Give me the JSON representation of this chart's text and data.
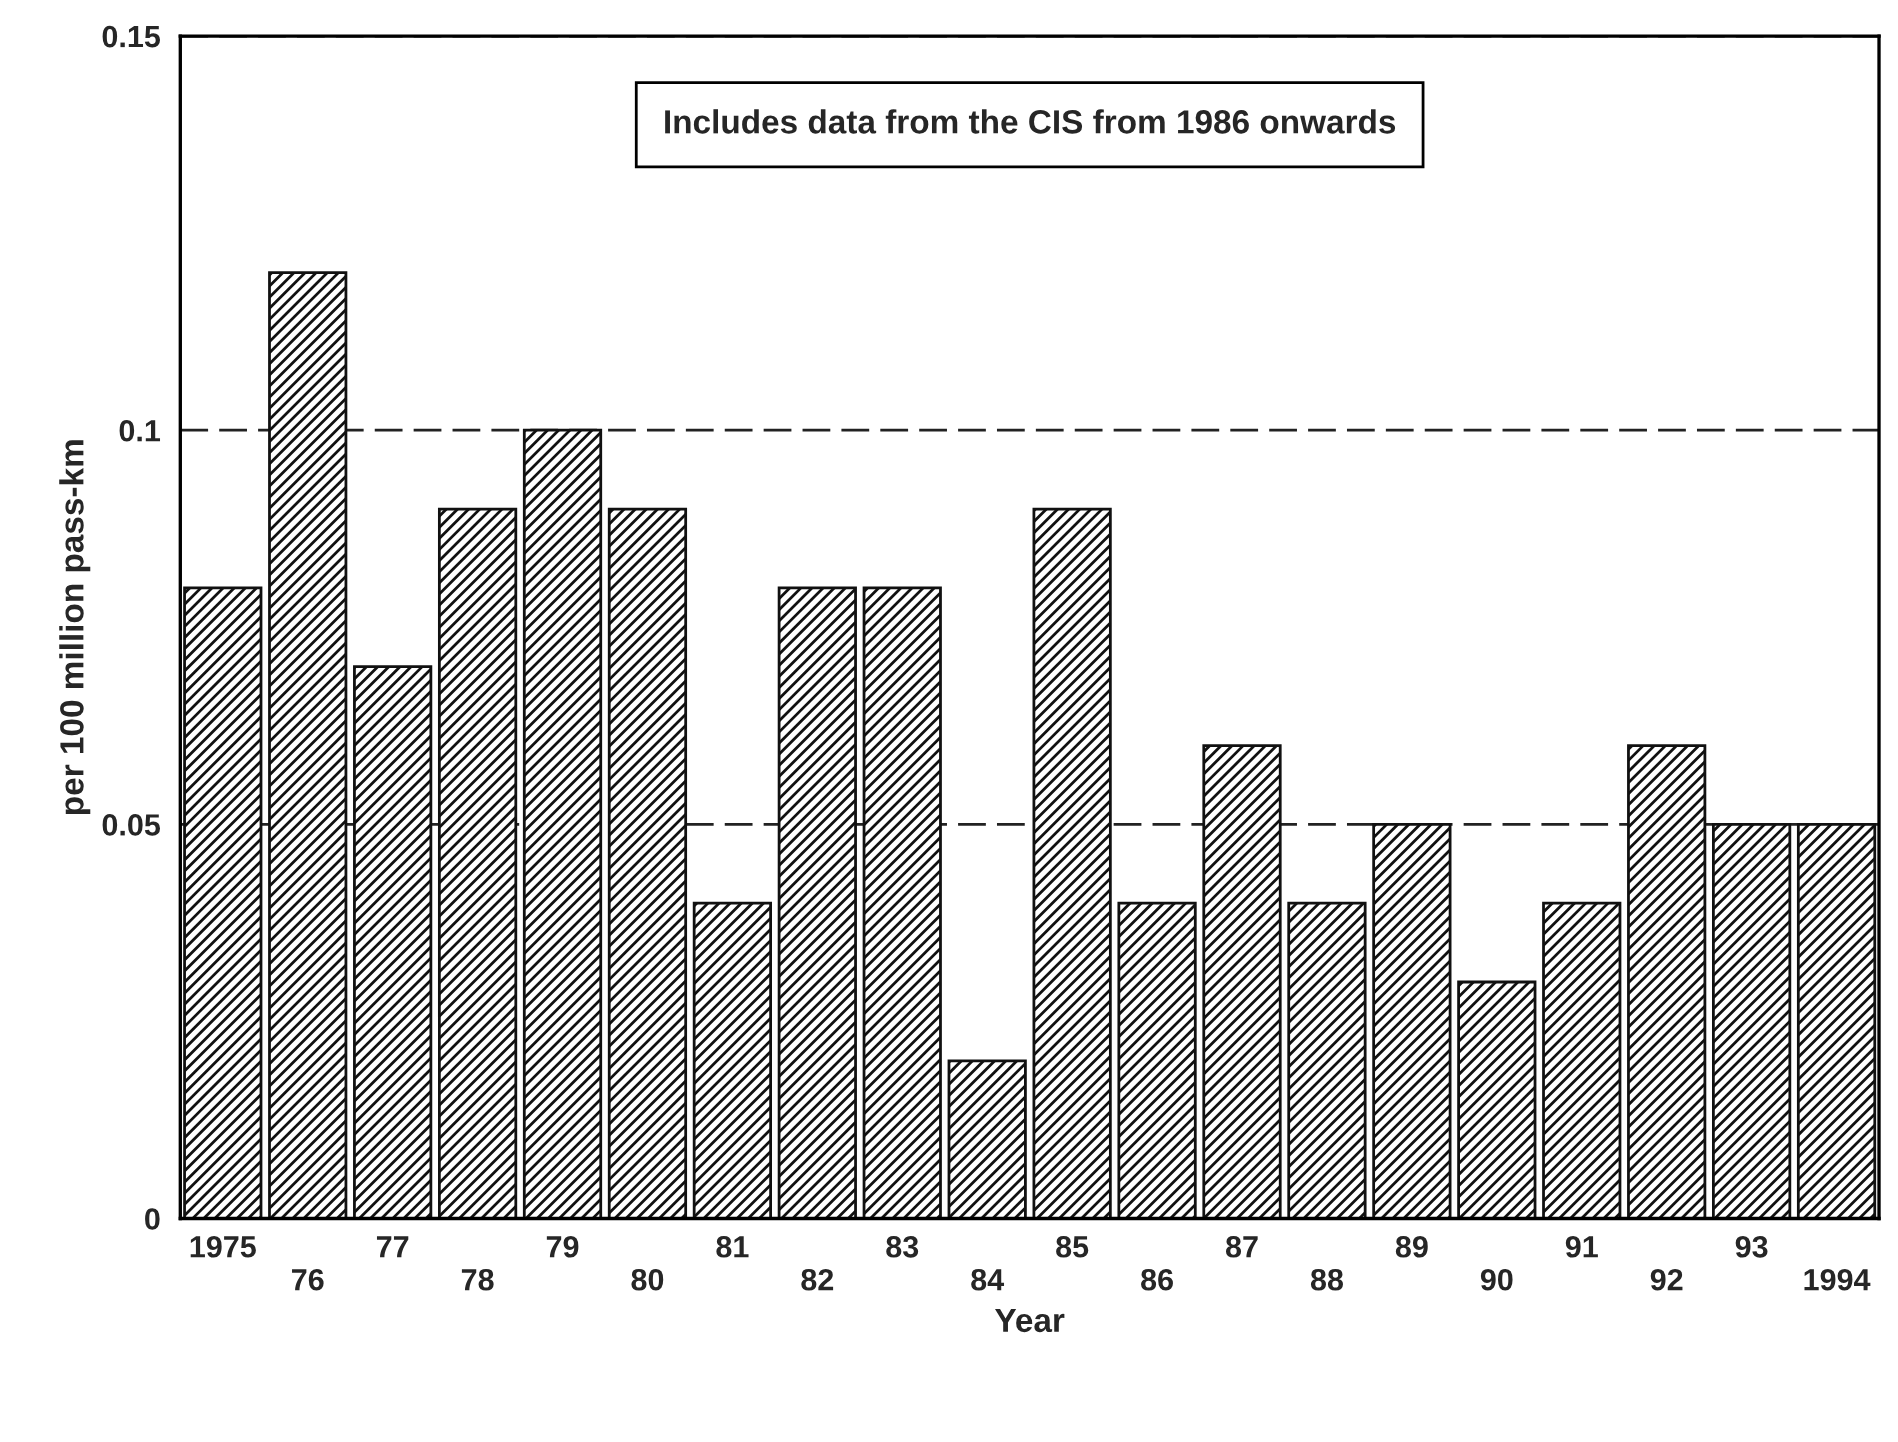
{
  "chart_data": {
    "type": "bar",
    "xlabel": "Year",
    "ylabel": "per 100 million pass-km",
    "categories": [
      "1975",
      "76",
      "77",
      "78",
      "79",
      "80",
      "81",
      "82",
      "83",
      "84",
      "85",
      "86",
      "87",
      "88",
      "89",
      "90",
      "91",
      "92",
      "93",
      "1994"
    ],
    "values": [
      0.08,
      0.12,
      0.07,
      0.09,
      0.1,
      0.09,
      0.04,
      0.08,
      0.08,
      0.02,
      0.09,
      0.04,
      0.06,
      0.04,
      0.05,
      0.03,
      0.04,
      0.06,
      0.05,
      0.05
    ],
    "color": "#111111",
    "ylim": [
      0,
      0.15
    ],
    "yticks": [
      0,
      0.05,
      0.1,
      0.15
    ],
    "grid": "y",
    "annotations": [
      "Includes data from the CIS from 1986 onwards"
    ]
  }
}
